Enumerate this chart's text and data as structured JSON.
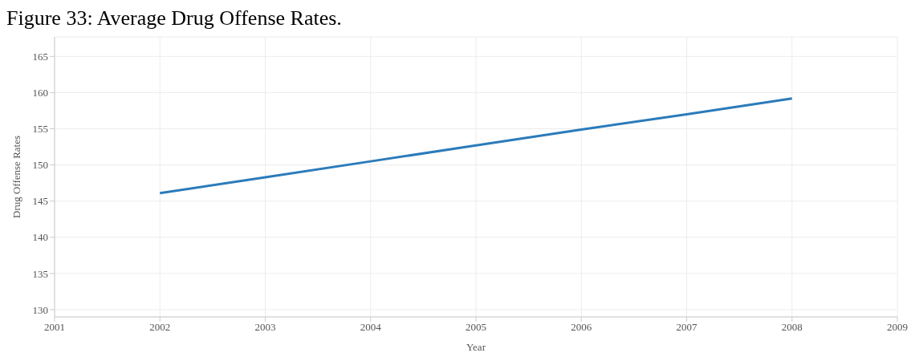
{
  "chart_data": {
    "type": "line",
    "title": "Figure 33: Average Drug Offense Rates.",
    "xlabel": "Year",
    "ylabel": "Drug Offense Rates",
    "x": [
      2002,
      2003,
      2004,
      2005,
      2006,
      2007,
      2008
    ],
    "series": [
      {
        "color": "#2b7bba",
        "values": [
          146.1,
          148.3,
          150.5,
          152.7,
          154.9,
          157.0,
          159.2
        ]
      }
    ],
    "xlim": [
      2001,
      2009
    ],
    "xticks": [
      2001,
      2002,
      2003,
      2004,
      2005,
      2006,
      2007,
      2008,
      2009
    ],
    "ylim": [
      129,
      167.7
    ],
    "yticks": [
      130,
      135,
      140,
      145,
      150,
      155,
      160,
      165
    ],
    "grid": true,
    "legend": false,
    "marker": "none",
    "line_style": "solid"
  }
}
